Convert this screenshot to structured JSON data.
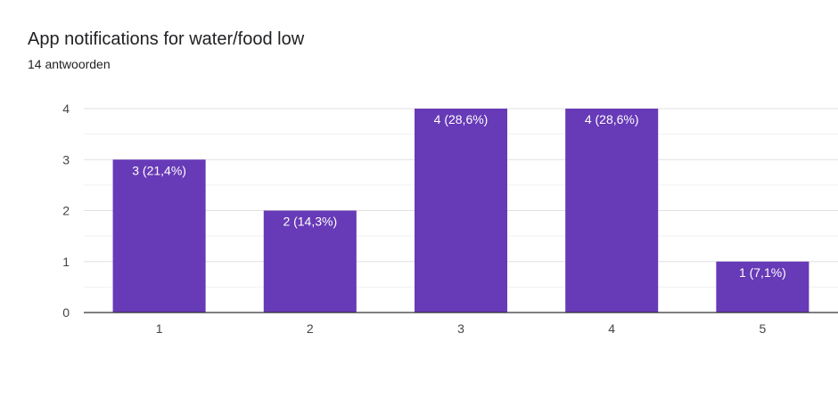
{
  "header": {
    "title": "App notifications for water/food low",
    "subtitle": "14 antwoorden"
  },
  "colors": {
    "bar": "#673ab7",
    "grid_major": "#e0e0e0",
    "grid_minor": "#f1f1f1",
    "axis": "#333333"
  },
  "chart_data": {
    "type": "bar",
    "title": "App notifications for water/food low",
    "subtitle": "14 antwoorden",
    "categories": [
      "1",
      "2",
      "3",
      "4",
      "5"
    ],
    "values": [
      3,
      2,
      4,
      4,
      1
    ],
    "data_labels": [
      "3 (21,4%)",
      "2 (14,3%)",
      "4 (28,6%)",
      "4 (28,6%)",
      "1 (7,1%)"
    ],
    "y_ticks": [
      "0",
      "1",
      "2",
      "3",
      "4"
    ],
    "ylim": [
      0,
      4
    ],
    "grid": true,
    "legend": "none"
  }
}
